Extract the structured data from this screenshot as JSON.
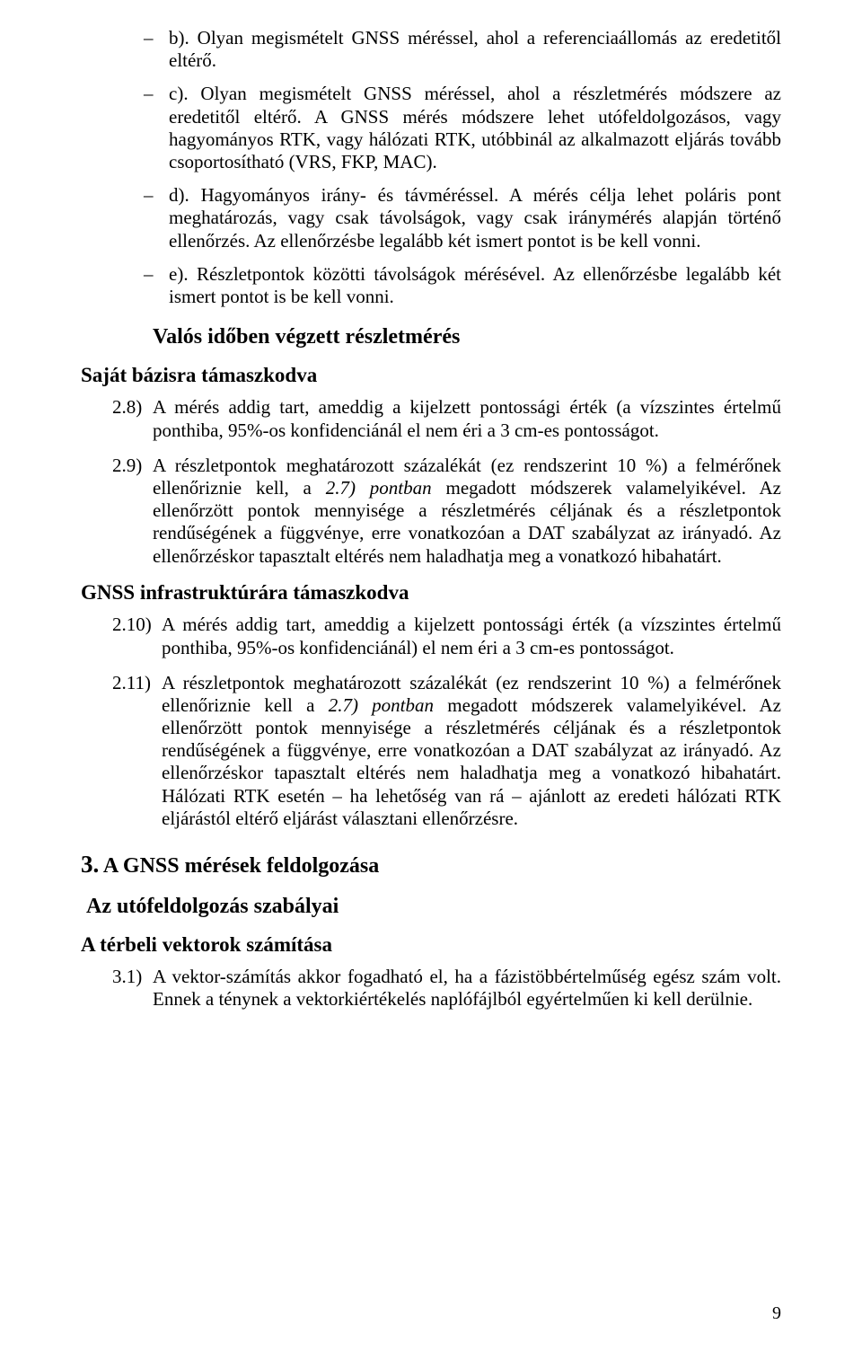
{
  "dash_items": [
    {
      "label": "b).",
      "text": "Olyan megismételt GNSS méréssel, ahol a referenciaállomás az eredetitől eltérő."
    },
    {
      "label": "c).",
      "text": "Olyan megismételt GNSS méréssel, ahol a részletmérés módszere az eredetitől eltérő. A GNSS mérés módszere lehet utófeldolgozásos, vagy hagyományos RTK, vagy hálózati RTK, utóbbinál az alkalmazott eljárás tovább csoportosítható (VRS, FKP, MAC)."
    },
    {
      "label": "d).",
      "text": "Hagyományos irány- és távméréssel. A mérés célja lehet poláris pont meghatározás, vagy csak távolságok, vagy csak iránymérés alapján történő ellenőrzés. Az ellenőrzésbe legalább két ismert pontot is be kell vonni."
    },
    {
      "label": "e).",
      "text": "Részletpontok közötti távolságok mérésével. Az ellenőrzésbe legalább két ismert pontot is be kell vonni."
    }
  ],
  "section_realtime": "Valós időben végzett részletmérés",
  "heading_own_base": "Saját bázisra támaszkodva",
  "own_base_items": [
    {
      "num": "2.8)",
      "text": "A mérés addig tart, ameddig a kijelzett pontossági érték (a vízszintes értelmű ponthiba, 95%-os konfidenciánál el nem éri a 3 cm-es pontosságot."
    },
    {
      "num": "2.9)",
      "text_prefix": "A részletpontok meghatározott százalékát (ez rendszerint 10 %) a felmérőnek ellenőriznie kell, a ",
      "text_ital": "2.7) pontban",
      "text_suffix": " megadott módszerek valamelyikével. Az ellenőrzött pontok mennyisége a részletmérés céljának és a részletpontok rendűségének a függvénye, erre vonatkozóan a DAT szabályzat az irányadó. Az ellenőrzéskor tapasztalt eltérés nem haladhatja meg a vonatkozó hibahatárt."
    }
  ],
  "heading_gnss_infra": "GNSS infrastruktúrára támaszkodva",
  "gnss_infra_items": [
    {
      "num": "2.10)",
      "text": "A mérés addig tart, ameddig a kijelzett pontossági érték (a vízszintes értelmű ponthiba, 95%-os konfidenciánál) el nem éri a 3 cm-es pontosságot."
    },
    {
      "num": "2.11)",
      "text_prefix": "A részletpontok meghatározott százalékát (ez rendszerint 10 %) a felmérőnek ellenőriznie kell a ",
      "text_ital": "2.7) pontban",
      "text_suffix": " megadott módszerek valamelyikével. Az ellenőrzött pontok mennyisége a részletmérés céljának és a részletpontok rendűségének a függvénye, erre vonatkozóan a DAT szabályzat az irányadó. Az ellenőrzéskor tapasztalt eltérés nem haladhatja meg a vonatkozó hibahatárt. Hálózati RTK esetén – ha lehetőség van rá – ajánlott az eredeti hálózati RTK eljárástól eltérő eljárást választani ellenőrzésre."
    }
  ],
  "chapter3_num": "3.",
  "chapter3_title": " A GNSS mérések feldolgozása",
  "sub_post_processing": "Az utófeldolgozás szabályai",
  "heading_vectors": "A térbeli vektorok számítása",
  "vectors_items": [
    {
      "num": "3.1)",
      "text": "A vektor-számítás akkor fogadható el, ha a fázistöbbértelműség egész szám volt. Ennek a ténynek a vektorkiértékelés naplófájlból egyértelműen ki kell derülnie."
    }
  ],
  "page_number": "9"
}
